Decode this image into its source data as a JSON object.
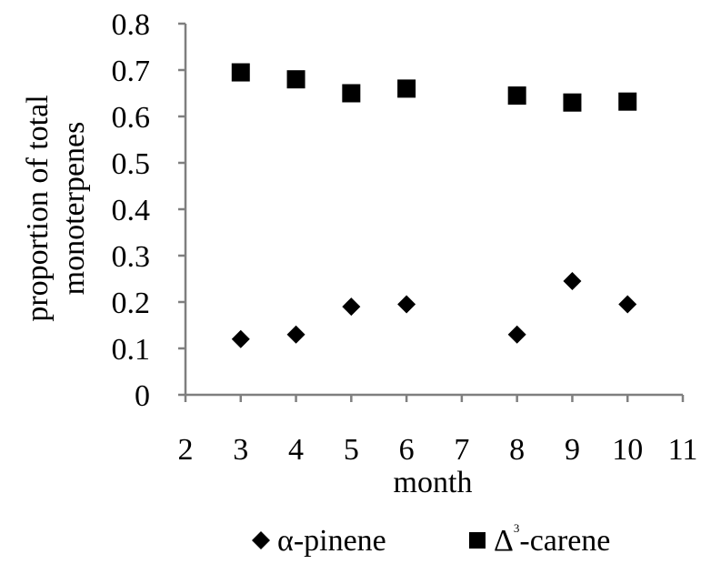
{
  "chart_data": {
    "type": "scatter",
    "title": "",
    "xlabel": "month",
    "ylabel_lines": [
      "proportion of total",
      "monoterpenes"
    ],
    "xlim": [
      2,
      11
    ],
    "ylim": [
      0,
      0.8
    ],
    "xticks": [
      2,
      3,
      4,
      5,
      6,
      7,
      8,
      9,
      10,
      11
    ],
    "yticks": [
      0,
      0.1,
      0.2,
      0.3,
      0.4,
      0.5,
      0.6,
      0.7,
      0.8
    ],
    "xtick_labels": [
      "2",
      "3",
      "4",
      "5",
      "6",
      "7",
      "8",
      "9",
      "10",
      "11"
    ],
    "ytick_labels": [
      "0",
      "0.1",
      "0.2",
      "0.3",
      "0.4",
      "0.5",
      "0.6",
      "0.7",
      "0.8"
    ],
    "grid": false,
    "legend_position": "bottom",
    "series": [
      {
        "name": "α-pinene",
        "marker": "diamond",
        "color": "#000000",
        "points": [
          {
            "x": 3,
            "y": 0.12
          },
          {
            "x": 4,
            "y": 0.13
          },
          {
            "x": 5,
            "y": 0.19
          },
          {
            "x": 6,
            "y": 0.195
          },
          {
            "x": 8,
            "y": 0.13
          },
          {
            "x": 9,
            "y": 0.245
          },
          {
            "x": 10,
            "y": 0.195
          }
        ]
      },
      {
        "name_prefix": "Δ",
        "name_superscript": "3",
        "name_suffix": "-carene",
        "marker": "square",
        "color": "#000000",
        "points": [
          {
            "x": 3,
            "y": 0.695
          },
          {
            "x": 4,
            "y": 0.68
          },
          {
            "x": 5,
            "y": 0.65
          },
          {
            "x": 6,
            "y": 0.66
          },
          {
            "x": 8,
            "y": 0.645
          },
          {
            "x": 9,
            "y": 0.63
          },
          {
            "x": 10,
            "y": 0.632
          }
        ]
      }
    ]
  }
}
